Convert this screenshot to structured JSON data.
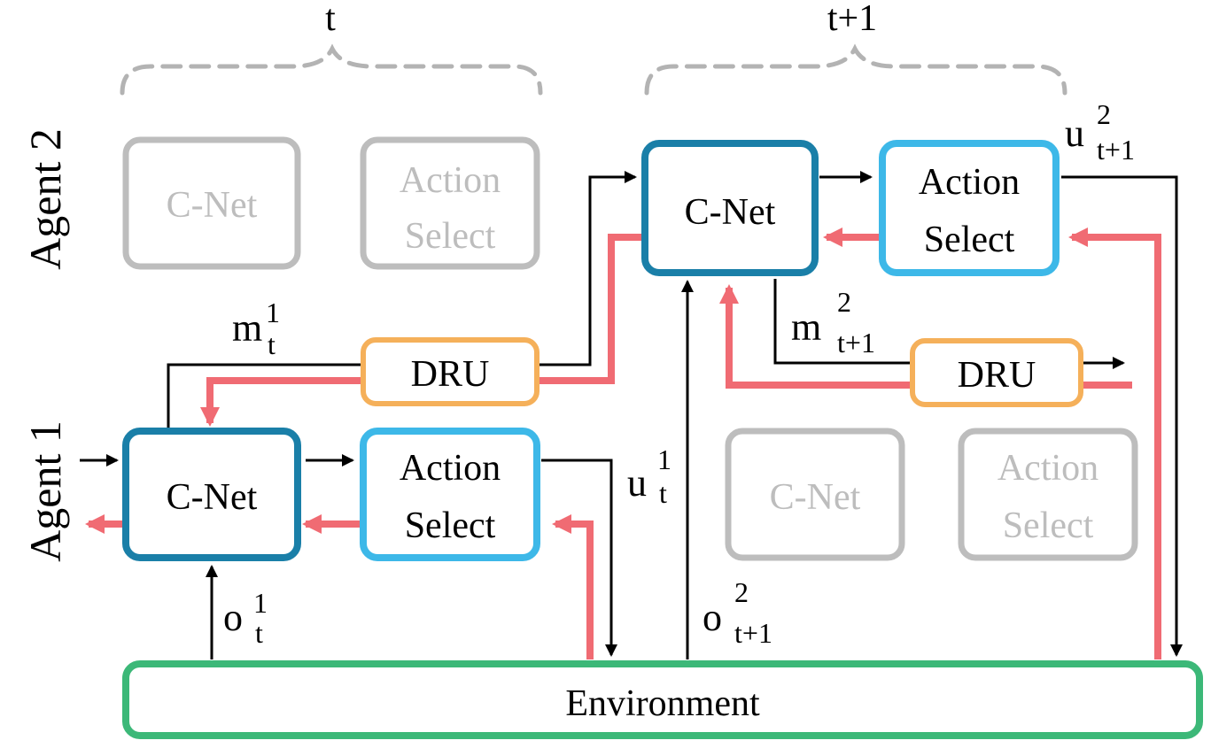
{
  "timesteps": {
    "t": "t",
    "t_next": "t+1"
  },
  "agents": {
    "agent2": "Agent 2",
    "agent1": "Agent 1"
  },
  "blocks": {
    "cnet": "C-Net",
    "action_line1": "Action",
    "action_line2": "Select",
    "dru": "DRU",
    "environment": "Environment"
  },
  "labels": {
    "m_t1": {
      "base": "m",
      "sup": "1",
      "sub": "t"
    },
    "u_t1": {
      "base": "u",
      "sup": "1",
      "sub": "t"
    },
    "o_t1": {
      "base": "o",
      "sup": "1",
      "sub": "t"
    },
    "m_t2": {
      "base": "m",
      "sup": "2",
      "sub": "t+1"
    },
    "u_t2": {
      "base": "u",
      "sup": "2",
      "sub": "t+1"
    },
    "o_t2": {
      "base": "o",
      "sup": "2",
      "sub": "t+1"
    }
  },
  "colors": {
    "cnet_border": "#1a7fa8",
    "action_border": "#3db8e8",
    "dru_border": "#f5b05a",
    "env_border": "#3cb878",
    "inactive": "#bdbdbd",
    "gradient": "#f06b73",
    "arrow": "#000000"
  }
}
